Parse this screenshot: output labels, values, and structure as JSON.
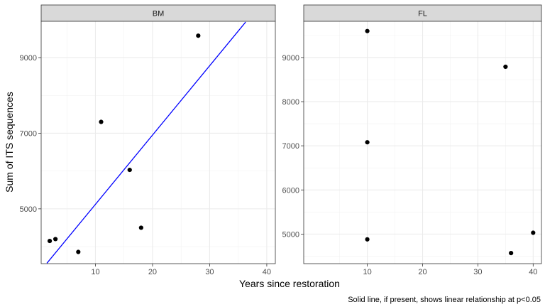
{
  "chart_data": {
    "type": "scatter",
    "xlabel": "Years since restoration",
    "ylabel": "Sum of ITS sequences",
    "caption": "Solid line, if present, shows linear relationship at p<0.05",
    "grid": true,
    "line_color": "#0000ff",
    "point_color": "#000000",
    "panels": [
      {
        "name": "BM",
        "xlim": [
          0.5,
          41.5
        ],
        "ylim": [
          3550,
          9960
        ],
        "x_ticks": [
          10,
          20,
          30,
          40
        ],
        "y_ticks": [
          5000,
          7000,
          9000
        ],
        "points": [
          {
            "x": 2,
            "y": 4150
          },
          {
            "x": 3,
            "y": 4200
          },
          {
            "x": 7,
            "y": 3860
          },
          {
            "x": 11,
            "y": 7300
          },
          {
            "x": 16,
            "y": 6030
          },
          {
            "x": 18,
            "y": 4500
          },
          {
            "x": 28,
            "y": 9580
          }
        ],
        "fit_line": {
          "x": [
            1.5,
            36.3
          ],
          "y": [
            3560,
            9940
          ]
        }
      },
      {
        "name": "FL",
        "xlim": [
          -1.5,
          41.5
        ],
        "ylim": [
          4330,
          9820
        ],
        "x_ticks": [
          10,
          20,
          30,
          40
        ],
        "y_ticks": [
          5000,
          6000,
          7000,
          8000,
          9000
        ],
        "points": [
          {
            "x": 10,
            "y": 9600
          },
          {
            "x": 10,
            "y": 7080
          },
          {
            "x": 10,
            "y": 4880
          },
          {
            "x": 35,
            "y": 8790
          },
          {
            "x": 36,
            "y": 4570
          },
          {
            "x": 40,
            "y": 5030
          }
        ]
      }
    ]
  }
}
